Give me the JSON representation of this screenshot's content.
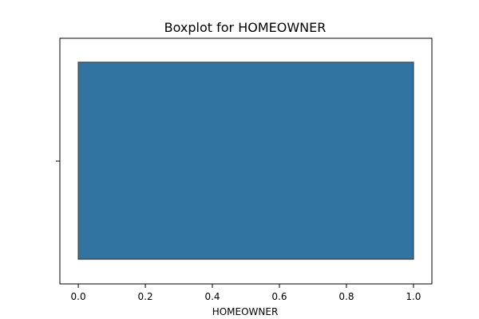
{
  "chart_data": {
    "type": "boxplot",
    "title": "Boxplot for HOMEOWNER",
    "xlabel": "HOMEOWNER",
    "ylabel": "",
    "xlim": [
      -0.055,
      1.055
    ],
    "xticks": [
      0.0,
      0.2,
      0.4,
      0.6,
      0.8,
      1.0
    ],
    "xtick_labels": [
      "0.0",
      "0.2",
      "0.4",
      "0.6",
      "0.8",
      "1.0"
    ],
    "box": {
      "min": 0.0,
      "q1": 0.0,
      "median": 1.0,
      "q3": 1.0,
      "max": 1.0
    },
    "orientation": "horizontal",
    "grid": false,
    "colors": {
      "box_fill": "#3274a1",
      "box_edge": "#3f3f3f",
      "axis": "#000000"
    }
  }
}
